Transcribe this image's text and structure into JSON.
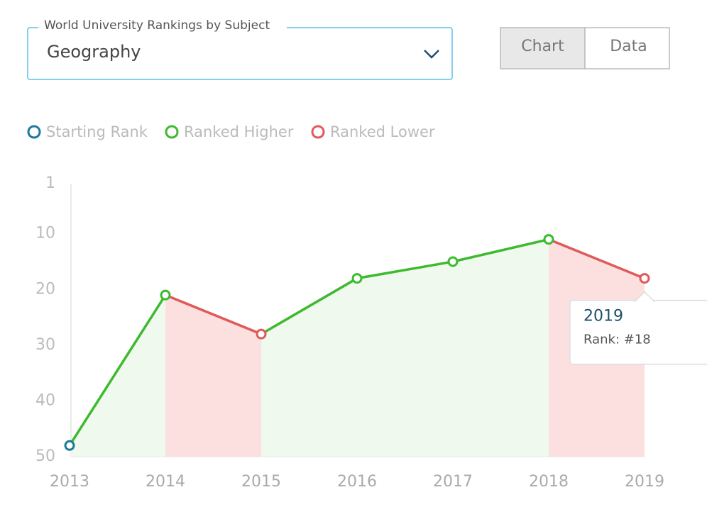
{
  "dropdown": {
    "label": "World University Rankings by Subject",
    "value": "Geography"
  },
  "view_toggle": {
    "options": [
      "Chart",
      "Data"
    ],
    "selected_index": 0
  },
  "chart_data": {
    "type": "line",
    "legend": [
      {
        "name": "Starting Rank",
        "color": "#1b7a9e"
      },
      {
        "name": "Ranked Higher",
        "color": "#3dba2e"
      },
      {
        "name": "Ranked Lower",
        "color": "#e05a5a"
      }
    ],
    "categories": [
      "2013",
      "2014",
      "2015",
      "2016",
      "2017",
      "2018",
      "2019"
    ],
    "values": [
      48,
      21,
      28,
      18,
      15,
      11,
      18
    ],
    "ylim": [
      50,
      1
    ],
    "yticks": [
      1,
      10,
      20,
      30,
      40,
      50
    ],
    "tooltip": {
      "index": 6,
      "title": "2019",
      "text": "Rank: #18"
    }
  }
}
